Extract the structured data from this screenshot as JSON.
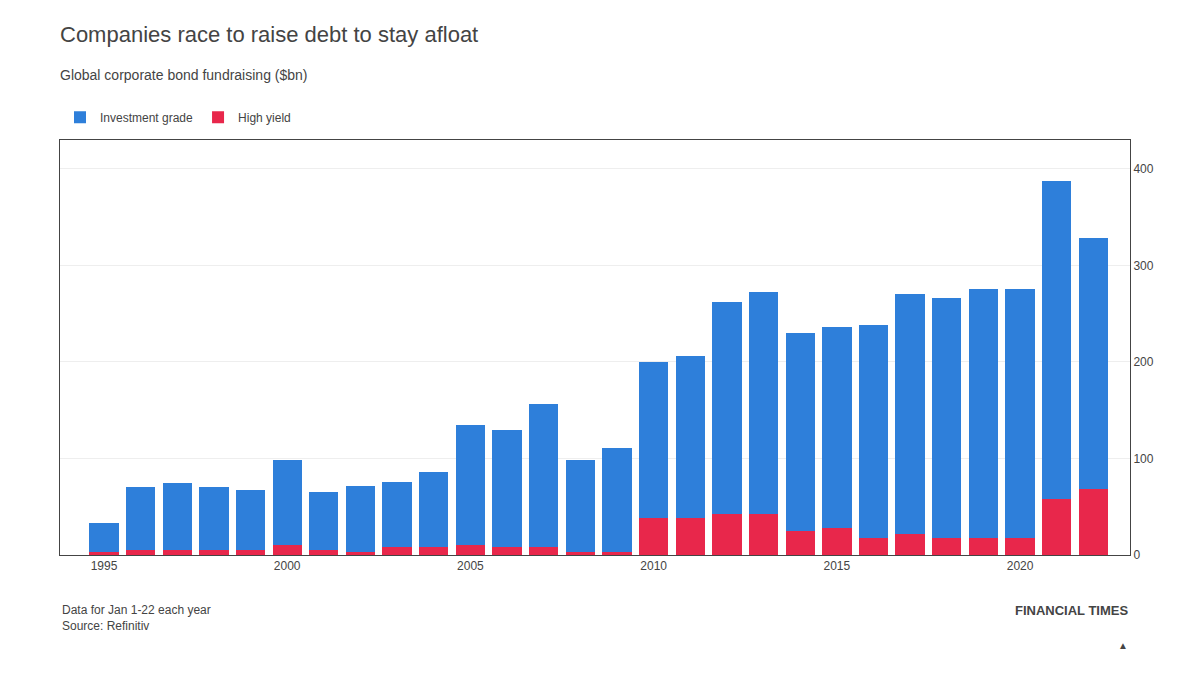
{
  "chart_data": {
    "type": "bar",
    "title": "Companies race to raise debt to stay afloat",
    "subtitle": "Global corporate bond fundraising ($bn)",
    "x": [
      1995,
      1996,
      1997,
      1998,
      1999,
      2000,
      2001,
      2002,
      2003,
      2004,
      2005,
      2006,
      2007,
      2008,
      2009,
      2010,
      2011,
      2012,
      2013,
      2014,
      2015,
      2016,
      2017,
      2018,
      2019,
      2020,
      2021,
      2022
    ],
    "series": [
      {
        "name": "High yield",
        "color": "#e8274b",
        "values": [
          3,
          5,
          5,
          5,
          5,
          10,
          5,
          3,
          8,
          8,
          10,
          8,
          8,
          3,
          3,
          38,
          38,
          42,
          42,
          25,
          28,
          18,
          22,
          18,
          18,
          18,
          58,
          68
        ]
      },
      {
        "name": "Investment grade",
        "color": "#2e7fda",
        "values": [
          30,
          65,
          70,
          65,
          62,
          88,
          60,
          68,
          68,
          78,
          125,
          122,
          148,
          95,
          108,
          162,
          168,
          220,
          230,
          205,
          208,
          220,
          248,
          248,
          258,
          258,
          330,
          260
        ]
      }
    ],
    "stacked": true,
    "xlim": [
      1993.8,
      2023.0
    ],
    "xticks": [
      1995,
      2000,
      2005,
      2010,
      2015,
      2020
    ],
    "ylim": [
      0,
      430
    ],
    "yticks": [
      0,
      100,
      200,
      300,
      400
    ],
    "grid": true,
    "legend": "top left",
    "annotations": [
      "Data for Jan 1-22 each year\nSource: Refinitiv",
      "FINANCIAL TIMES",
      "▲"
    ]
  }
}
